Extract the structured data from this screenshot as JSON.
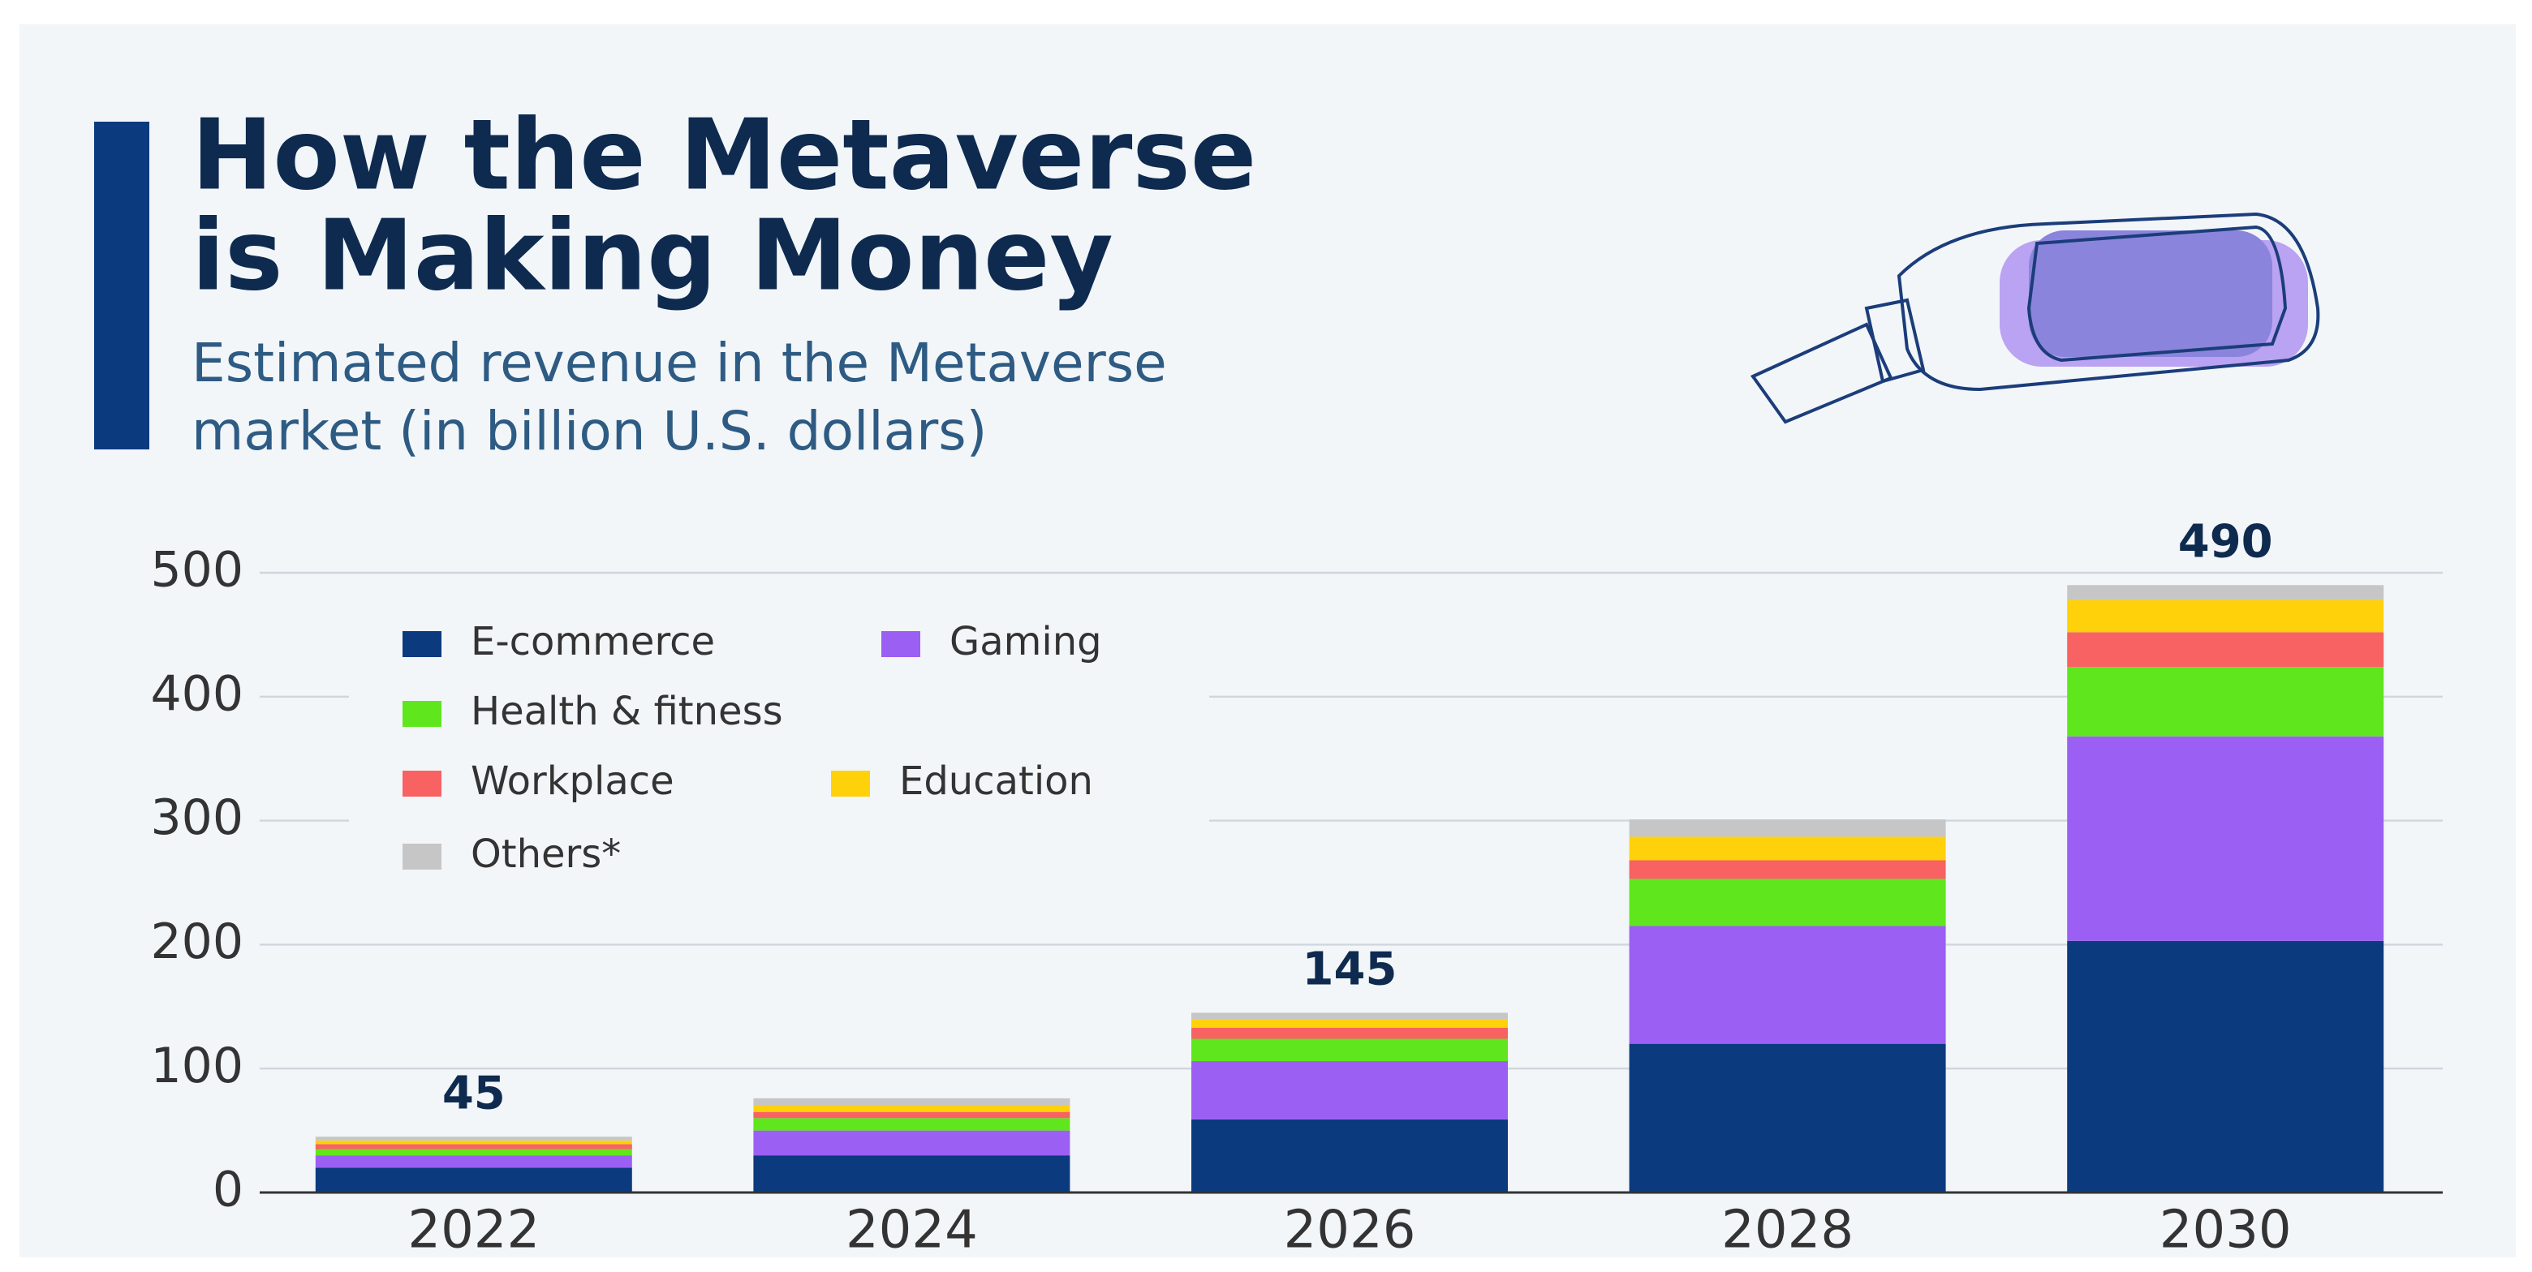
{
  "chart_data": {
    "type": "bar",
    "stacked": true,
    "title": [
      "How the Metaverse",
      "is Making Money"
    ],
    "subtitle": [
      "Estimated revenue in the Metaverse",
      "market (in billion U.S. dollars)"
    ],
    "categories": [
      "2022",
      "2024",
      "2026",
      "2028",
      "2030"
    ],
    "series": [
      {
        "name": "E-commerce",
        "color": "#0b3a7e",
        "values": [
          20,
          30,
          59,
          120,
          203
        ]
      },
      {
        "name": "Gaming",
        "color": "#9b5ff4",
        "values": [
          10,
          20,
          47,
          95,
          165
        ]
      },
      {
        "name": "Health & fitness",
        "color": "#5fe61c",
        "values": [
          5,
          10,
          18,
          38,
          56
        ]
      },
      {
        "name": "Workplace",
        "color": "#f86262",
        "values": [
          4,
          5,
          9,
          15,
          28
        ]
      },
      {
        "name": "Education",
        "color": "#ffd10a",
        "values": [
          3,
          5,
          7,
          19,
          26
        ]
      },
      {
        "name": "Others*",
        "color": "#c6c6c6",
        "values": [
          3,
          6,
          5,
          14,
          12
        ]
      }
    ],
    "totals": [
      45,
      null,
      145,
      null,
      490
    ],
    "ylim": [
      0,
      500
    ],
    "yticks": [
      0,
      100,
      200,
      300,
      400,
      500
    ],
    "grid": true
  }
}
